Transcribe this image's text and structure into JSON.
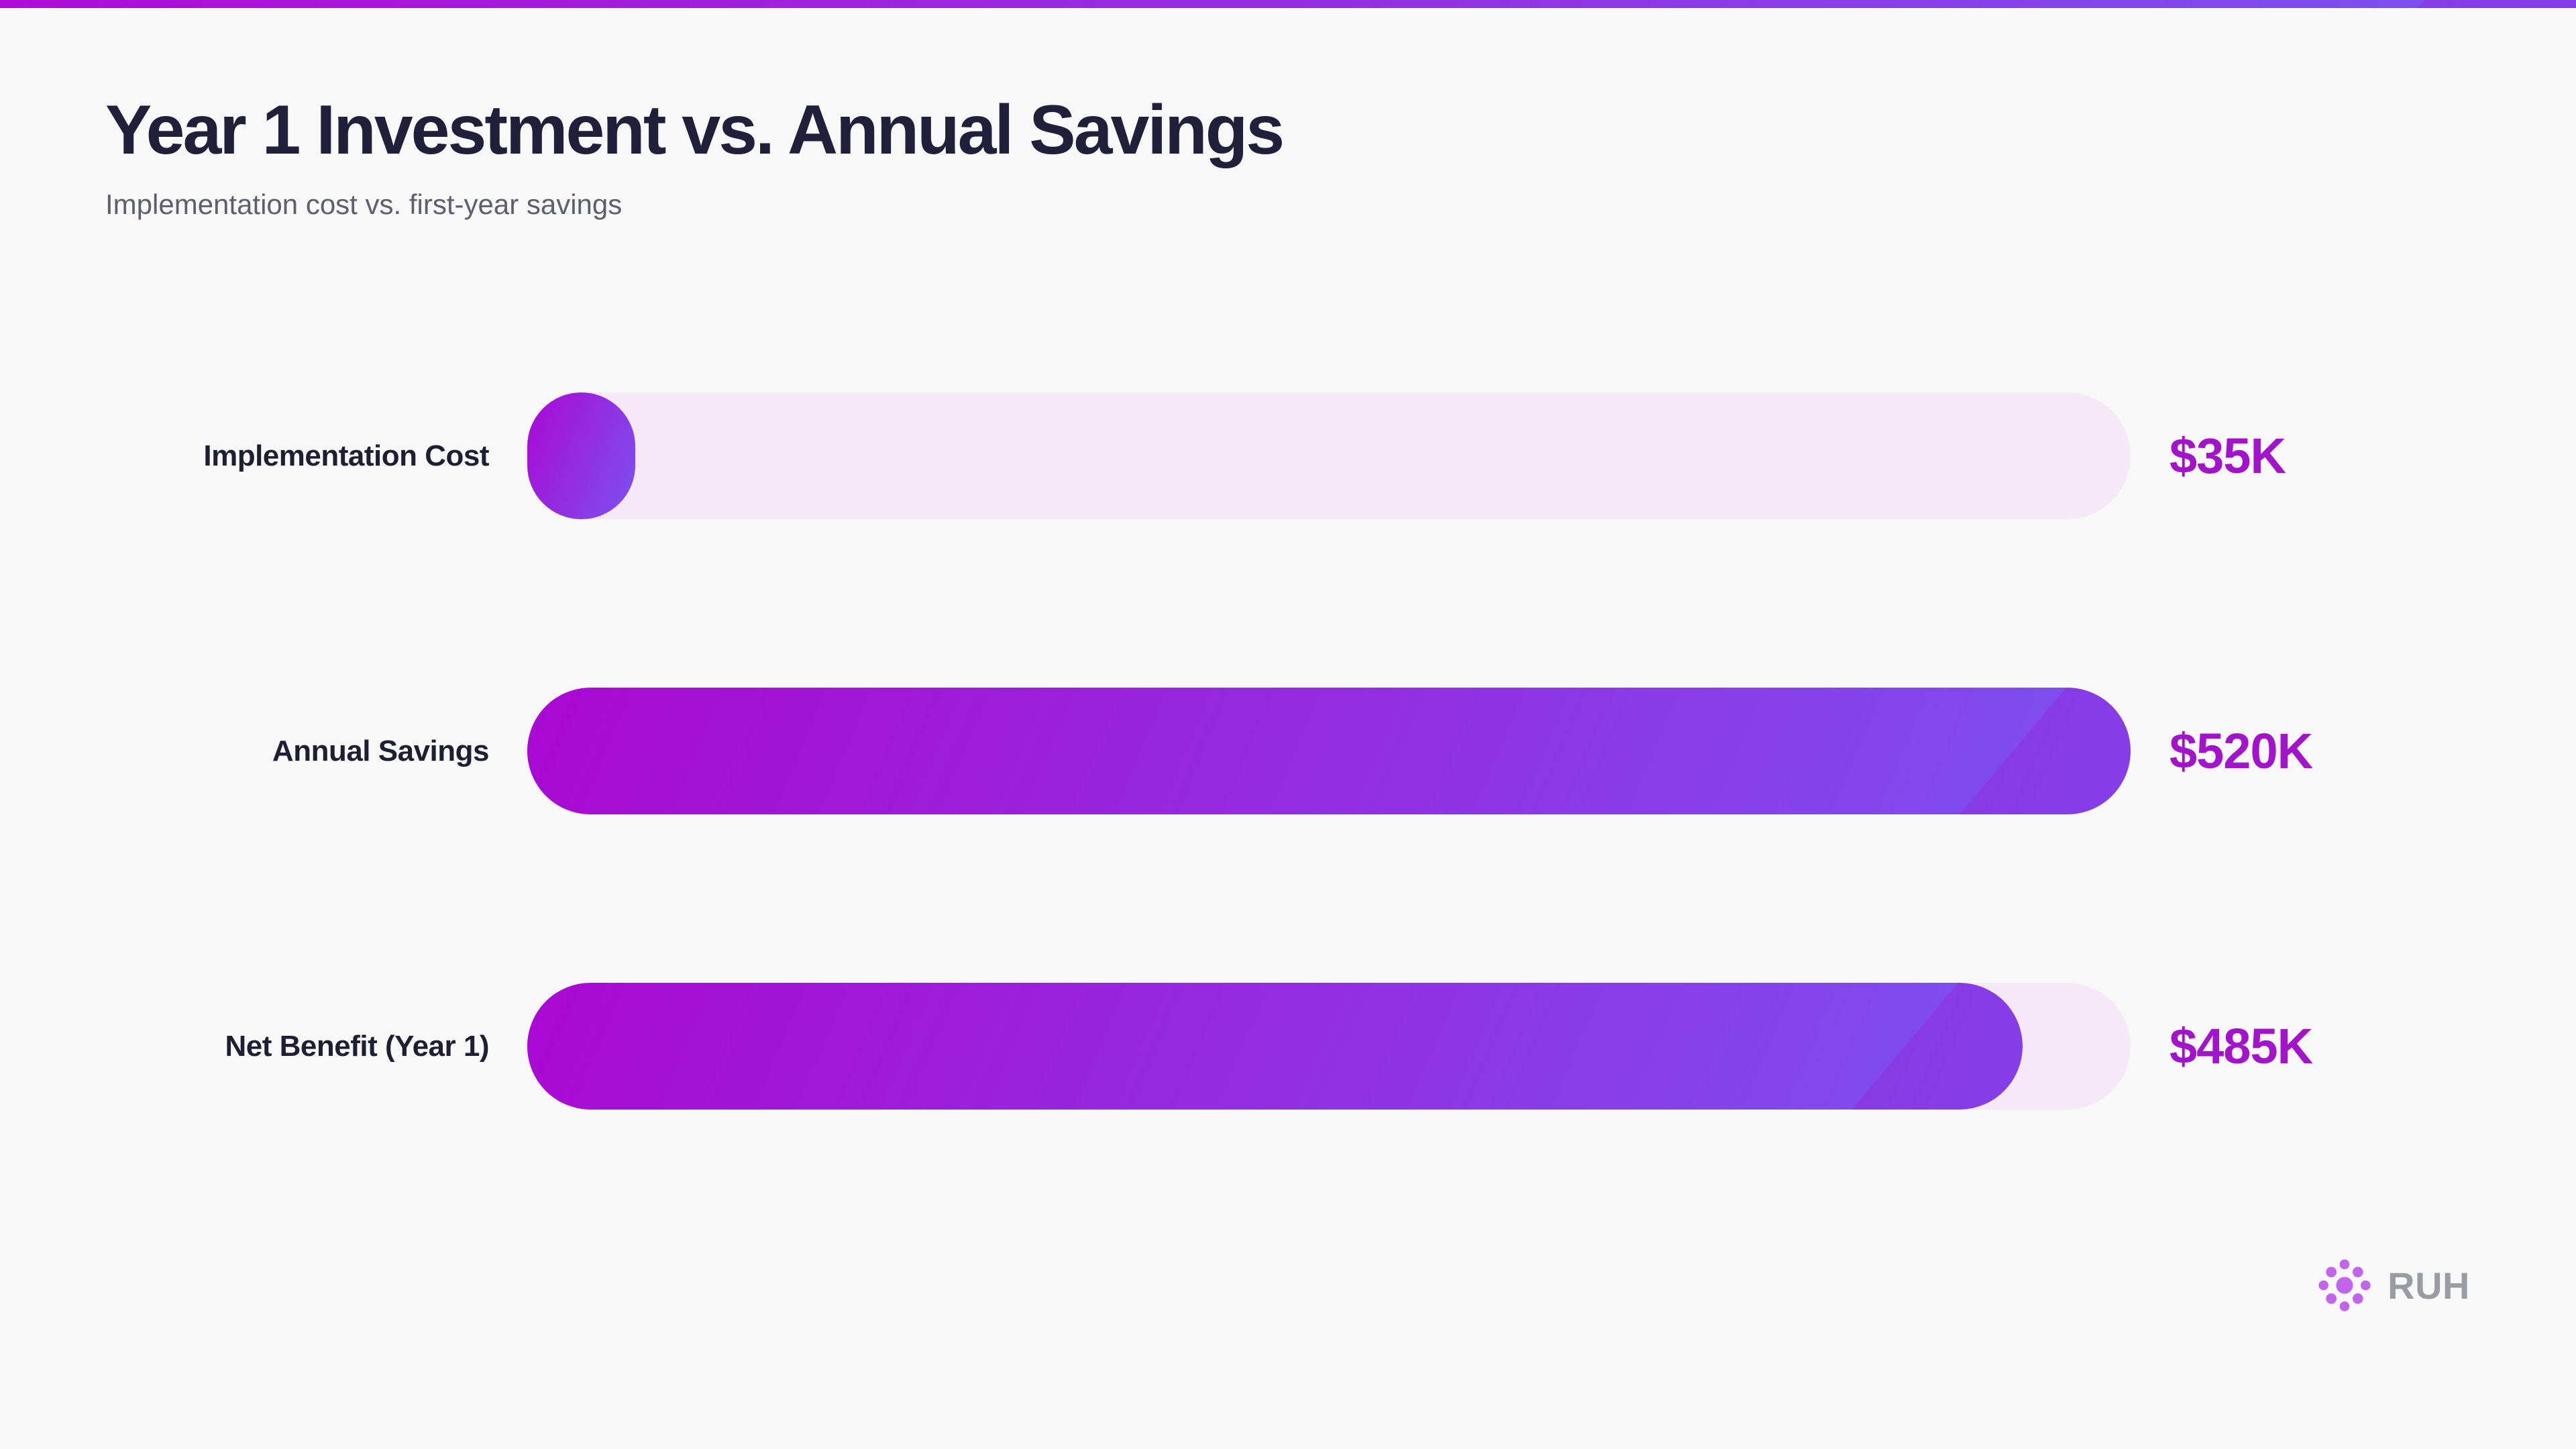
{
  "chart_data": {
    "type": "bar",
    "orientation": "horizontal",
    "title": "Year 1 Investment vs. Annual Savings",
    "subtitle": "Implementation cost vs. first-year savings",
    "unit": "USD thousands",
    "xlim": [
      0,
      520
    ],
    "grid": false,
    "legend": false,
    "categories": [
      "Implementation Cost",
      "Annual Savings",
      "Net Benefit (Year 1)"
    ],
    "values": [
      35,
      520,
      485
    ],
    "value_labels": [
      "$35K",
      "$520K",
      "$485K"
    ],
    "rows": [
      {
        "label": "Implementation Cost",
        "value": 35,
        "display": "$35K",
        "pct": 6.73
      },
      {
        "label": "Annual Savings",
        "value": 520,
        "display": "$520K",
        "pct": 100
      },
      {
        "label": "Net Benefit (Year 1)",
        "value": 485,
        "display": "$485K",
        "pct": 93.27
      }
    ]
  },
  "brand": {
    "name": "RUH",
    "icon": "dots-burst-icon"
  },
  "colors": {
    "background": "#F8F8F9",
    "strip_start": "#B00CD9",
    "strip_end": "#7A52F1",
    "bar_start": "#AA08D3",
    "bar_end": "#7C52F1",
    "bar_track": "#F6E9F7",
    "shine": "rgba(151,23,214,0.33)",
    "title_text": "#20203A",
    "subtitle_text": "#5E5E6C",
    "label_text": "#1F1F33",
    "value_text": "#A313CB",
    "logo_dot": "#C364EC",
    "logo_text": "#9B9BA3"
  }
}
